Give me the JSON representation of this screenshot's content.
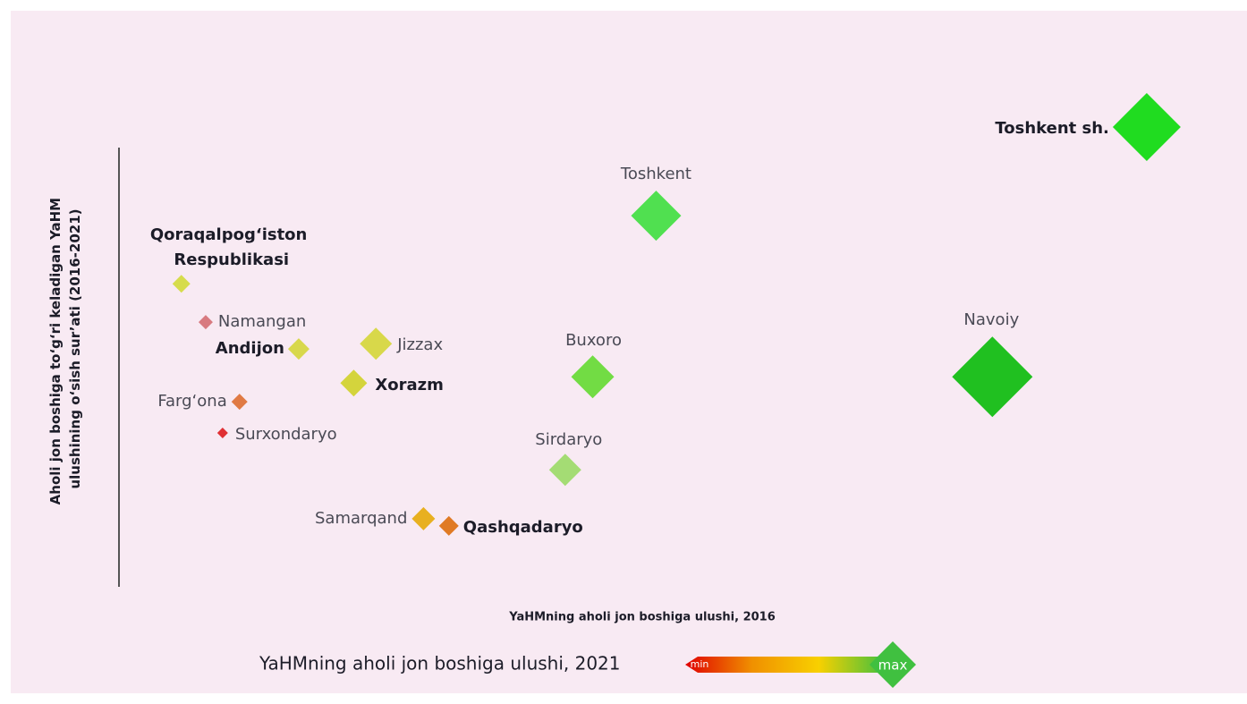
{
  "chart_data": {
    "type": "scatter",
    "y_label": [
      "Aholi jon boshiga to‘g‘ri keladigan YaHM",
      "ulushining o‘sish sur’ati (2016-2021)"
    ],
    "x_label": "YaHMning aholi jon boshiga ulushi, 2016",
    "xlim": [
      0,
      100
    ],
    "ylim": [
      0,
      100
    ],
    "series": [
      {
        "categories": [
          "Qoraqalpog‘iston Respublikasi",
          "Namangan",
          "Andijon",
          "Jizzax",
          "Xorazm",
          "Farg‘ona",
          "Surxondaryo",
          "Samarqand",
          "Qashqadaryo",
          "Sirdaryo",
          "Buxoro",
          "Toshkent",
          "Navoiy",
          "Toshkent sh."
        ],
        "x": [
          5.9,
          8.2,
          17.0,
          24.3,
          22.2,
          11.4,
          9.8,
          28.8,
          31.2,
          42.2,
          44.8,
          50.8,
          82.6,
          97.2
        ],
        "values": [
          63.2,
          55.2,
          49.6,
          50.7,
          42.5,
          38.6,
          32.1,
          14.2,
          12.7,
          24.4,
          43.8,
          77.4,
          43.8,
          95.9
        ],
        "sizes": [
          10,
          8,
          12,
          18,
          15,
          9,
          6,
          13,
          11,
          18,
          24,
          28,
          45,
          38
        ],
        "colors": [
          "#d6dc4c",
          "#d87a80",
          "#d8d84c",
          "#d8d84a",
          "#d4d43c",
          "#e07a44",
          "#e03034",
          "#e8b020",
          "#e07a24",
          "#a4dc74",
          "#72dc44",
          "#50e050",
          "#20c020",
          "#20dc20"
        ]
      }
    ],
    "legend": {
      "title": "YaHMning aholi jon boshiga ulushi, 2021",
      "min": "min",
      "max": "max",
      "color_scale": [
        "#e00000",
        "#f09000",
        "#f8d000",
        "#40c040"
      ]
    }
  }
}
